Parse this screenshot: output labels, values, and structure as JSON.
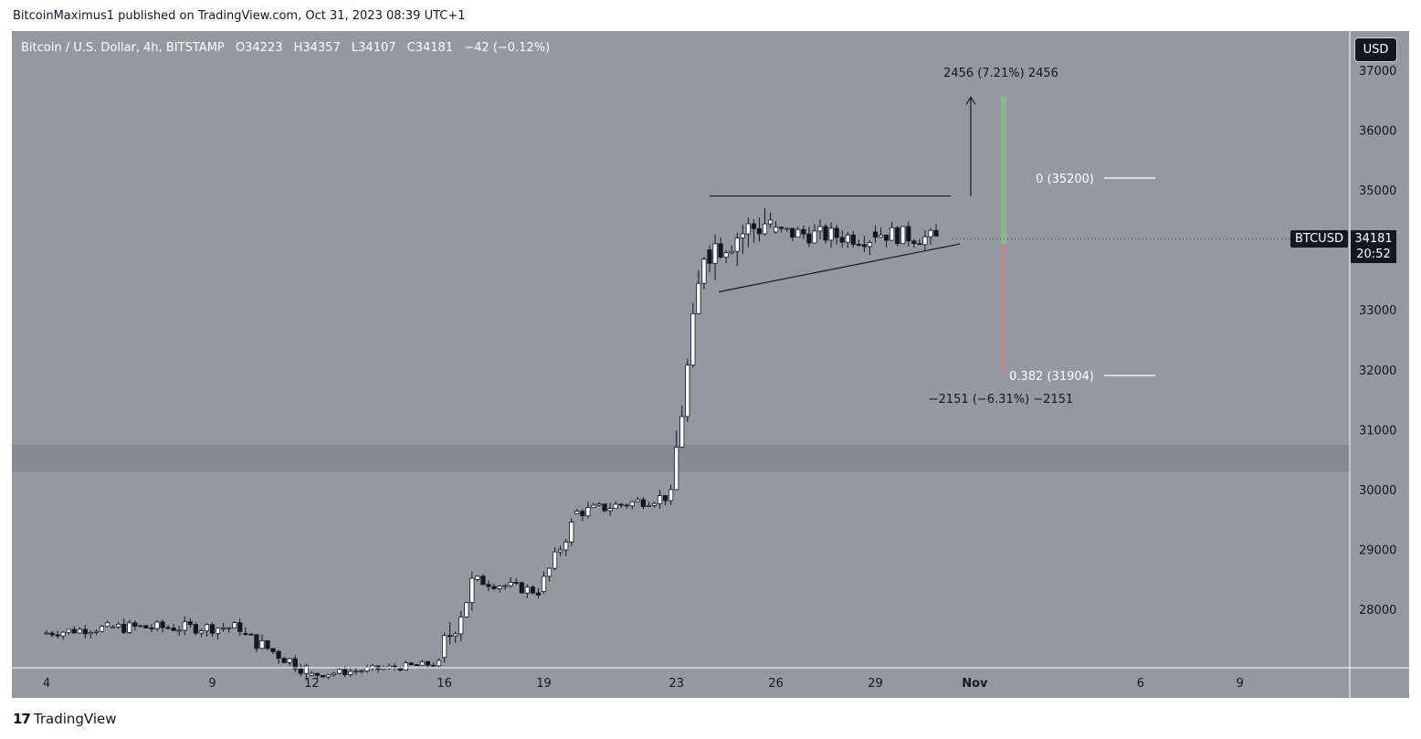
{
  "publisher": "BitcoinMaximus1 published on TradingView.com, Oct 31, 2023 08:39 UTC+1",
  "brand": {
    "logo_icon": "tradingview-logo-icon",
    "name": "TradingView"
  },
  "header": {
    "symbol": "Bitcoin / U.S. Dollar, 4h, BITSTAMP",
    "open": "O34223",
    "high": "H34357",
    "low": "L34107",
    "close": "C34181",
    "change": "−42 (−0.12%)",
    "currency_button": "USD"
  },
  "price_tag": {
    "ticker": "BTCUSD",
    "price": "34181",
    "countdown": "20:52"
  },
  "colors": {
    "background": "#9598a1",
    "zone": "#868993",
    "bull": "#ffffff",
    "bear": "#131722",
    "green_bar": "#8fb591",
    "red_bar": "#b08b8f"
  },
  "chart_data": {
    "type": "candlestick",
    "y_ticks": [
      28000,
      29000,
      30000,
      31000,
      32000,
      33000,
      34000,
      35000,
      36000,
      37000
    ],
    "y_tick_labels": [
      "28000",
      "29000",
      "30000",
      "31000",
      "32000",
      "33000",
      "34000",
      "35000",
      "36000",
      "37000"
    ],
    "x_ticks": [
      "4",
      "9",
      "12",
      "16",
      "19",
      "23",
      "26",
      "29",
      "Nov",
      "6",
      "9"
    ],
    "x_tick_days": [
      4,
      9,
      12,
      16,
      19,
      23,
      26,
      29,
      32,
      37,
      40
    ],
    "support_zone": [
      30300,
      30750
    ],
    "triangle": {
      "resistance": {
        "start": [
          "Oct 24",
          34900
        ],
        "end": [
          "Oct 31",
          34900
        ]
      },
      "ascending_support": {
        "start": [
          "Oct 24",
          33300
        ],
        "end": [
          "Oct 31",
          34100
        ]
      }
    },
    "fib_levels": [
      {
        "label": "0 (35200)",
        "value": 35200
      },
      {
        "label": "0.382 (31904)",
        "value": 31904
      }
    ],
    "measures": [
      {
        "label": "2456 (7.21%) 2456",
        "from": 34100,
        "to": 36556,
        "color": "green"
      },
      {
        "label": "−2151 (−6.31%) −2151",
        "from": 34100,
        "to": 31950,
        "color": "red"
      }
    ],
    "target_arrow": {
      "from": 34900,
      "to": 36550
    },
    "ohlc_segments": [
      {
        "from": "Oct 4",
        "to": "Oct 6",
        "start": 27600,
        "end": 27700,
        "noise": 80
      },
      {
        "from": "Oct 6",
        "to": "Oct 10",
        "start": 27700,
        "end": 27700,
        "noise": 100
      },
      {
        "from": "Oct 10",
        "to": "Oct 12",
        "start": 27600,
        "end": 27000,
        "noise": 120
      },
      {
        "from": "Oct 12",
        "to": "Oct 16",
        "start": 26900,
        "end": 27100,
        "noise": 60
      },
      {
        "from": "Oct 16",
        "to": "Oct 17",
        "start": 27200,
        "end": 28400,
        "noise": 250
      },
      {
        "from": "Oct 17",
        "to": "Oct 19",
        "start": 28500,
        "end": 28300,
        "noise": 90
      },
      {
        "from": "Oct 19",
        "to": "Oct 20",
        "start": 28300,
        "end": 29400,
        "noise": 120
      },
      {
        "from": "Oct 20",
        "to": "Oct 23",
        "start": 29600,
        "end": 29900,
        "noise": 100
      },
      {
        "from": "Oct 23",
        "to": "Oct 24",
        "start": 30000,
        "end": 34000,
        "noise": 300
      },
      {
        "from": "Oct 24",
        "to": "Oct 26",
        "start": 34000,
        "end": 34500,
        "noise": 300
      },
      {
        "from": "Oct 26",
        "to": "Oct 29",
        "start": 34300,
        "end": 34200,
        "noise": 150
      },
      {
        "from": "Oct 29",
        "to": "Oct 31",
        "start": 34300,
        "end": 34181,
        "noise": 150
      }
    ]
  }
}
